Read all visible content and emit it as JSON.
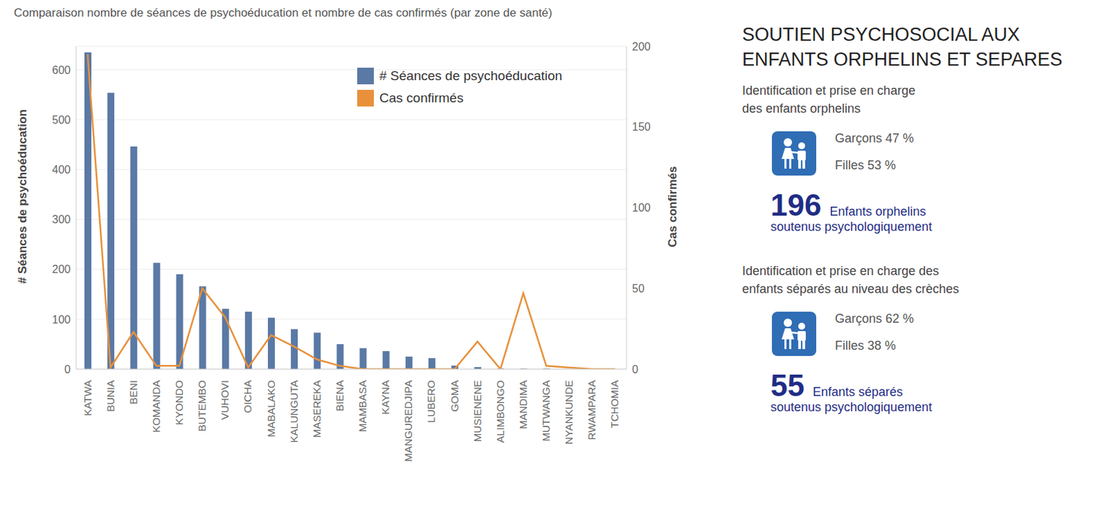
{
  "chart_data": {
    "type": "bar",
    "title": "Comparaison nombre de séances de psychoéducation et nombre de cas confirmés (par zone de santé)",
    "categories": [
      "KATWA",
      "BUNIA",
      "BENI",
      "KOMANDA",
      "KYONDO",
      "BUTEMBO",
      "VUHOVI",
      "OICHA",
      "MABALAKO",
      "KALUNGUTA",
      "MASEREKA",
      "BIENA",
      "MAMBASA",
      "KAYNA",
      "MANGUREDJIPA",
      "LUBERO",
      "GOMA",
      "MUSIENENE",
      "ALIMBONGO",
      "MANDIMA",
      "MUTWANGA",
      "NYANKUNDE",
      "RWAMPARA",
      "TCHOMIA"
    ],
    "series": [
      {
        "name": "# Séances de psychoéducation",
        "type": "bar",
        "color": "#5a79a5",
        "values": [
          635,
          554,
          446,
          213,
          190,
          166,
          121,
          115,
          103,
          80,
          73,
          50,
          42,
          36,
          25,
          22,
          7,
          4,
          1,
          1,
          1,
          0,
          0,
          0
        ]
      },
      {
        "name": "Cas confirmés",
        "type": "line",
        "axis": "y2",
        "color": "#e8913a",
        "values": [
          195,
          1,
          23,
          2,
          2,
          50,
          32,
          1,
          21,
          14,
          6,
          2,
          0,
          0,
          0,
          0,
          0,
          17,
          0,
          47,
          2,
          1,
          0,
          0
        ]
      }
    ],
    "y_label": "# Séances de psychoéducation",
    "y2_label": "Cas confirmés",
    "ylim": [
      0,
      647
    ],
    "yticks": [
      0,
      100,
      200,
      300,
      400,
      500,
      600
    ],
    "y2lim": [
      0,
      200
    ],
    "y2ticks": [
      0,
      50,
      100,
      150,
      200
    ],
    "grid": true,
    "legend": "top right"
  },
  "panel": {
    "title_lines": [
      "SOUTIEN PSYCHOSOCIAL AUX",
      "ENFANTS ORPHELINS ET SEPARES"
    ],
    "sections": [
      {
        "heading_lines": [
          "Identification et prise en charge",
          "des enfants orphelins"
        ],
        "boys": "Garçons 47 %",
        "girls": "Filles 53 %",
        "count": 196,
        "caption_lines": [
          "Enfants orphelins",
          "soutenus psychologiquement"
        ]
      },
      {
        "heading_lines": [
          "Identification et prise en charge des",
          "enfants séparés au niveau des crèches"
        ],
        "boys": "Garçons 62 %",
        "girls": "Filles 38 %",
        "count": 55,
        "caption_lines": [
          "Enfants séparés",
          "soutenus psychologiquement"
        ]
      }
    ]
  }
}
